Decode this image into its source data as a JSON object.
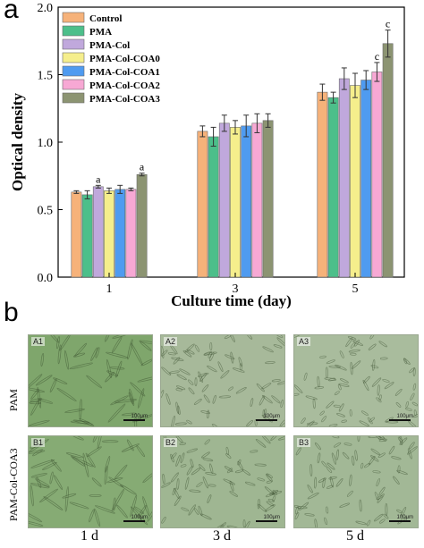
{
  "panel_a_letter": "a",
  "panel_b_letter": "b",
  "chart_data": {
    "type": "bar",
    "xlabel": "Culture time (day)",
    "ylabel": "Optical density",
    "categories": [
      "1",
      "3",
      "5"
    ],
    "ylim": [
      0,
      2.0
    ],
    "yticks": [
      "0.0",
      "0.5",
      "1.0",
      "1.5",
      "2.0"
    ],
    "legend_position": "top-left",
    "grid": false,
    "series": [
      {
        "name": "Control",
        "color": "#f6b27a",
        "values": [
          0.63,
          1.08,
          1.37
        ],
        "errors": [
          0.01,
          0.04,
          0.06
        ]
      },
      {
        "name": "PMA",
        "color": "#4cbf8a",
        "values": [
          0.61,
          1.04,
          1.33
        ],
        "errors": [
          0.03,
          0.07,
          0.04
        ]
      },
      {
        "name": "PMA-Col",
        "color": "#c0a8dc",
        "values": [
          0.67,
          1.14,
          1.47
        ],
        "errors": [
          0.01,
          0.06,
          0.08
        ]
      },
      {
        "name": "PMA-Col-COA0",
        "color": "#f5ee8c",
        "values": [
          0.64,
          1.11,
          1.42
        ],
        "errors": [
          0.02,
          0.05,
          0.09
        ]
      },
      {
        "name": "PMA-Col-COA1",
        "color": "#4f9bf0",
        "values": [
          0.65,
          1.12,
          1.46
        ],
        "errors": [
          0.03,
          0.08,
          0.07
        ]
      },
      {
        "name": "PMA-Col-COA2",
        "color": "#f7a8d4",
        "values": [
          0.65,
          1.14,
          1.52
        ],
        "errors": [
          0.01,
          0.07,
          0.07
        ]
      },
      {
        "name": "PMA-Col-COA3",
        "color": "#8c9472",
        "values": [
          0.76,
          1.16,
          1.73
        ],
        "errors": [
          0.01,
          0.05,
          0.1
        ]
      }
    ],
    "annotations": [
      {
        "text": "a",
        "category": "1",
        "series": "PMA-Col"
      },
      {
        "text": "a",
        "category": "1",
        "series": "PMA-Col-COA3"
      },
      {
        "text": "c",
        "category": "5",
        "series": "PMA-Col-COA2"
      },
      {
        "text": "c",
        "category": "5",
        "series": "PMA-Col-COA3"
      }
    ]
  },
  "micrographs": {
    "rows": [
      "PAM",
      "PAM-Col-COA3"
    ],
    "columns": [
      "1 d",
      "3 d",
      "5 d"
    ],
    "tiles": [
      {
        "tag": "A1",
        "scale": "100μm",
        "tint": "#7fa66c"
      },
      {
        "tag": "A2",
        "scale": "100μm",
        "tint": "#a7b99a"
      },
      {
        "tag": "A3",
        "scale": "100μm",
        "tint": "#a9bc9d"
      },
      {
        "tag": "B1",
        "scale": "100μm",
        "tint": "#86ab74"
      },
      {
        "tag": "B2",
        "scale": "100μm",
        "tint": "#9fb692"
      },
      {
        "tag": "B3",
        "scale": "100μm",
        "tint": "#a2b896"
      }
    ]
  }
}
